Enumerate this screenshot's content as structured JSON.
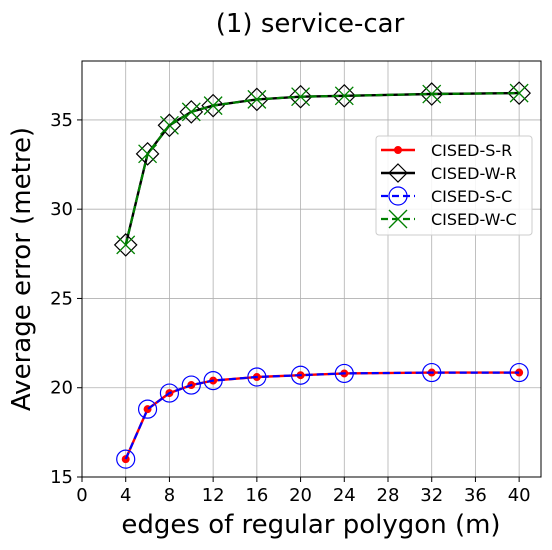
{
  "chart_data": {
    "type": "line",
    "title": "(1) service-car",
    "xlabel": "edges of regular polygon (m)",
    "ylabel": "Average error (metre)",
    "xlim": [
      0,
      42
    ],
    "ylim": [
      15,
      38.3
    ],
    "xticks": [
      0,
      4,
      8,
      12,
      16,
      20,
      24,
      28,
      32,
      36,
      40
    ],
    "yticks": [
      15,
      20,
      25,
      30,
      35
    ],
    "grid": true,
    "legend_position": "right",
    "x": [
      4,
      6,
      8,
      10,
      12,
      16,
      20,
      24,
      32,
      40
    ],
    "series": [
      {
        "name": "CISED-S-R",
        "color": "#ff0000",
        "dash": "solid",
        "marker": "dot",
        "values": [
          16.0,
          18.8,
          19.7,
          20.15,
          20.4,
          20.6,
          20.7,
          20.8,
          20.85,
          20.85
        ]
      },
      {
        "name": "CISED-W-R",
        "color": "#000000",
        "dash": "solid",
        "marker": "diamond",
        "values": [
          28.0,
          33.1,
          34.7,
          35.45,
          35.8,
          36.15,
          36.3,
          36.35,
          36.45,
          36.5
        ]
      },
      {
        "name": "CISED-S-C",
        "color": "#0000ff",
        "dash": "dashed",
        "marker": "circle",
        "values": [
          16.0,
          18.8,
          19.7,
          20.15,
          20.4,
          20.6,
          20.7,
          20.8,
          20.85,
          20.85
        ]
      },
      {
        "name": "CISED-W-C",
        "color": "#008000",
        "dash": "dashed",
        "marker": "x",
        "values": [
          28.0,
          33.1,
          34.7,
          35.45,
          35.8,
          36.15,
          36.3,
          36.35,
          36.45,
          36.5
        ]
      }
    ]
  }
}
